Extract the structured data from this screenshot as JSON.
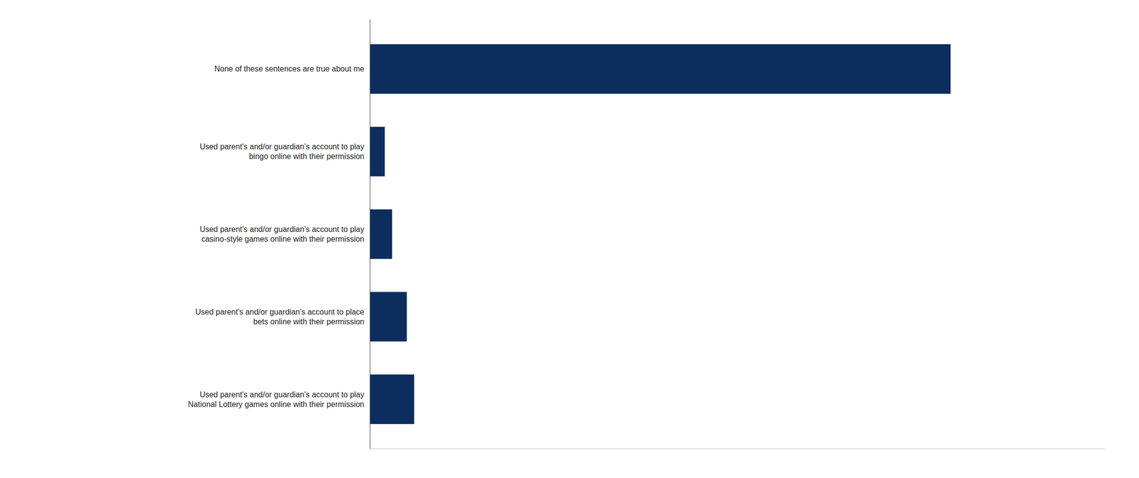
{
  "chart_data": {
    "type": "bar",
    "orientation": "horizontal",
    "categories": [
      "Used parent's and/or guardian's account to play\nNational Lottery games online with their permission",
      "Used parent's and/or guardian's account to place\nbets online with their permission",
      "Used parent's and/or guardian's account to play\ncasino-style games online with their permission",
      "Used parent's and/or guardian's account to play\nbingo online with their permission",
      "None of these sentences are true about me"
    ],
    "values": [
      6,
      5,
      3,
      2,
      79
    ],
    "color": "#0d2d5e",
    "xlim": [
      0,
      100
    ],
    "grid": false,
    "tick_labels": "y"
  }
}
